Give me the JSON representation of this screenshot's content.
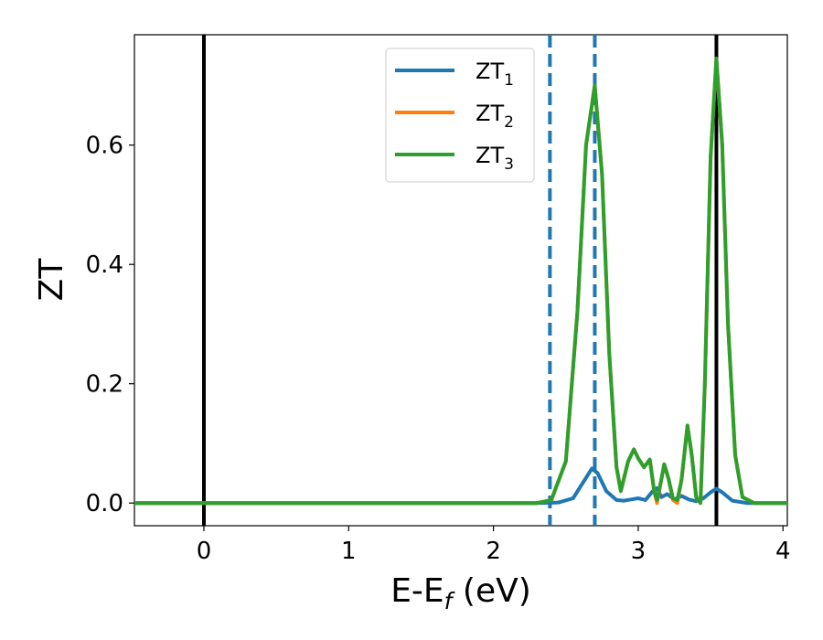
{
  "chart_data": {
    "type": "line",
    "xlabel": {
      "main": "E-E",
      "sub": "f",
      "unit": " (eV)"
    },
    "ylabel": "ZT",
    "xlim": [
      -0.48,
      4.03
    ],
    "ylim": [
      -0.038,
      0.785
    ],
    "xticks": [
      0,
      1,
      2,
      3,
      4
    ],
    "xtick_labels": [
      "0",
      "1",
      "2",
      "3",
      "4"
    ],
    "yticks": [
      0.0,
      0.2,
      0.4,
      0.6
    ],
    "ytick_labels": [
      "0.0",
      "0.2",
      "0.4",
      "0.6"
    ],
    "grid": false,
    "legend_position": "top-center",
    "vlines": [
      {
        "x": 0.0,
        "style": "solid",
        "color": "#000000"
      },
      {
        "x": 3.54,
        "style": "solid",
        "color": "#000000"
      },
      {
        "x": 2.39,
        "style": "dashed",
        "color": "#1f77b4"
      },
      {
        "x": 2.7,
        "style": "dashed",
        "color": "#1f77b4"
      }
    ],
    "series": [
      {
        "name": "ZT",
        "name_sub": "1",
        "color": "#1f77b4",
        "points": [
          [
            -0.48,
            0
          ],
          [
            2.3,
            0
          ],
          [
            2.45,
            0.001
          ],
          [
            2.55,
            0.008
          ],
          [
            2.62,
            0.035
          ],
          [
            2.68,
            0.058
          ],
          [
            2.72,
            0.05
          ],
          [
            2.78,
            0.02
          ],
          [
            2.85,
            0.005
          ],
          [
            2.9,
            0.004
          ],
          [
            2.95,
            0.006
          ],
          [
            3.0,
            0.008
          ],
          [
            3.05,
            0.005
          ],
          [
            3.1,
            0.02
          ],
          [
            3.13,
            0.025
          ],
          [
            3.16,
            0.01
          ],
          [
            3.2,
            0.015
          ],
          [
            3.25,
            0.006
          ],
          [
            3.3,
            0.012
          ],
          [
            3.35,
            0.006
          ],
          [
            3.4,
            0.003
          ],
          [
            3.45,
            0.008
          ],
          [
            3.5,
            0.018
          ],
          [
            3.54,
            0.024
          ],
          [
            3.58,
            0.018
          ],
          [
            3.65,
            0.004
          ],
          [
            3.75,
            0.0
          ],
          [
            4.03,
            0
          ]
        ]
      },
      {
        "name": "ZT",
        "name_sub": "2",
        "color": "#ff7f0e",
        "points": [
          [
            -0.48,
            0
          ],
          [
            2.3,
            0
          ],
          [
            2.4,
            0.005
          ],
          [
            2.5,
            0.07
          ],
          [
            2.58,
            0.32
          ],
          [
            2.64,
            0.6
          ],
          [
            2.7,
            0.7
          ],
          [
            2.75,
            0.55
          ],
          [
            2.8,
            0.25
          ],
          [
            2.85,
            0.06
          ],
          [
            2.88,
            0.02
          ],
          [
            2.93,
            0.07
          ],
          [
            2.97,
            0.09
          ],
          [
            3.0,
            0.075
          ],
          [
            3.04,
            0.06
          ],
          [
            3.08,
            0.073
          ],
          [
            3.11,
            0.02
          ],
          [
            3.13,
            0.0
          ],
          [
            3.16,
            0.04
          ],
          [
            3.18,
            0.065
          ],
          [
            3.21,
            0.04
          ],
          [
            3.24,
            0.005
          ],
          [
            3.27,
            0.0
          ],
          [
            3.3,
            0.04
          ],
          [
            3.34,
            0.13
          ],
          [
            3.37,
            0.08
          ],
          [
            3.4,
            0.01
          ],
          [
            3.43,
            0.0
          ],
          [
            3.46,
            0.2
          ],
          [
            3.5,
            0.58
          ],
          [
            3.54,
            0.745
          ],
          [
            3.58,
            0.6
          ],
          [
            3.62,
            0.3
          ],
          [
            3.67,
            0.08
          ],
          [
            3.72,
            0.01
          ],
          [
            3.8,
            0.0
          ],
          [
            4.03,
            0
          ]
        ]
      },
      {
        "name": "ZT",
        "name_sub": "3",
        "color": "#2ca02c",
        "points": [
          [
            -0.48,
            0
          ],
          [
            2.3,
            0
          ],
          [
            2.4,
            0.005
          ],
          [
            2.5,
            0.07
          ],
          [
            2.58,
            0.32
          ],
          [
            2.64,
            0.6
          ],
          [
            2.7,
            0.7
          ],
          [
            2.75,
            0.55
          ],
          [
            2.8,
            0.25
          ],
          [
            2.85,
            0.06
          ],
          [
            2.88,
            0.02
          ],
          [
            2.93,
            0.07
          ],
          [
            2.97,
            0.09
          ],
          [
            3.0,
            0.075
          ],
          [
            3.04,
            0.06
          ],
          [
            3.08,
            0.073
          ],
          [
            3.11,
            0.02
          ],
          [
            3.13,
            0.005
          ],
          [
            3.16,
            0.04
          ],
          [
            3.18,
            0.065
          ],
          [
            3.21,
            0.04
          ],
          [
            3.24,
            0.008
          ],
          [
            3.27,
            0.005
          ],
          [
            3.3,
            0.04
          ],
          [
            3.34,
            0.13
          ],
          [
            3.37,
            0.08
          ],
          [
            3.4,
            0.01
          ],
          [
            3.43,
            0.0
          ],
          [
            3.46,
            0.2
          ],
          [
            3.5,
            0.58
          ],
          [
            3.54,
            0.745
          ],
          [
            3.58,
            0.6
          ],
          [
            3.62,
            0.3
          ],
          [
            3.67,
            0.08
          ],
          [
            3.72,
            0.01
          ],
          [
            3.8,
            0.0
          ],
          [
            4.03,
            0
          ]
        ]
      }
    ]
  }
}
